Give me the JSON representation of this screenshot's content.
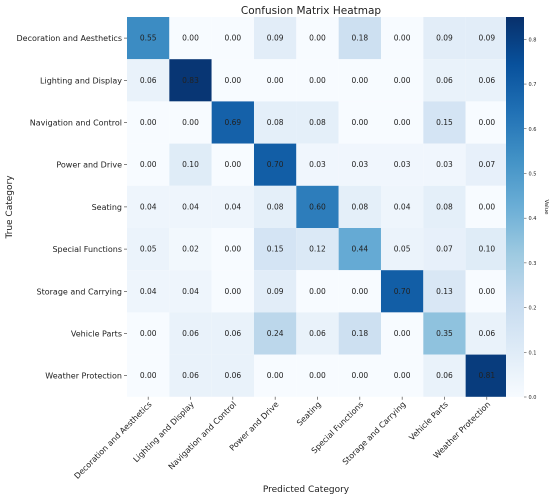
{
  "chart_data": {
    "type": "heatmap",
    "title": "Confusion Matrix Heatmap",
    "xlabel": "Predicted Category",
    "ylabel": "True Category",
    "colorbar_label": "Value",
    "colorbar_ticks": [
      "0.0",
      "0.1",
      "0.2",
      "0.3",
      "0.4",
      "0.5",
      "0.6",
      "0.7",
      "0.8"
    ],
    "colorbar_range": [
      0,
      0.85
    ],
    "colormap": "Blues",
    "colors": {
      "low": "#f7fbff",
      "high": "#08306b",
      "grid": "#ffffff"
    },
    "categories": [
      "Decoration and Aesthetics",
      "Lighting and Display",
      "Navigation and Control",
      "Power and Drive",
      "Seating",
      "Special Functions",
      "Storage and Carrying",
      "Vehicle Parts",
      "Weather Protection"
    ],
    "matrix": [
      [
        "0.55",
        "0.00",
        "0.00",
        "0.09",
        "0.00",
        "0.18",
        "0.00",
        "0.09",
        "0.09"
      ],
      [
        "0.06",
        "0.83",
        "0.00",
        "0.00",
        "0.00",
        "0.00",
        "0.00",
        "0.06",
        "0.06"
      ],
      [
        "0.00",
        "0.00",
        "0.69",
        "0.08",
        "0.08",
        "0.00",
        "0.00",
        "0.15",
        "0.00"
      ],
      [
        "0.00",
        "0.10",
        "0.00",
        "0.70",
        "0.03",
        "0.03",
        "0.03",
        "0.03",
        "0.07"
      ],
      [
        "0.04",
        "0.04",
        "0.04",
        "0.08",
        "0.60",
        "0.08",
        "0.04",
        "0.08",
        "0.00"
      ],
      [
        "0.05",
        "0.02",
        "0.00",
        "0.15",
        "0.12",
        "0.44",
        "0.05",
        "0.07",
        "0.10"
      ],
      [
        "0.04",
        "0.04",
        "0.00",
        "0.09",
        "0.00",
        "0.00",
        "0.70",
        "0.13",
        "0.00"
      ],
      [
        "0.00",
        "0.06",
        "0.06",
        "0.24",
        "0.06",
        "0.18",
        "0.00",
        "0.35",
        "0.06"
      ],
      [
        "0.00",
        "0.06",
        "0.06",
        "0.00",
        "0.00",
        "0.00",
        "0.00",
        "0.06",
        "0.81"
      ]
    ]
  }
}
